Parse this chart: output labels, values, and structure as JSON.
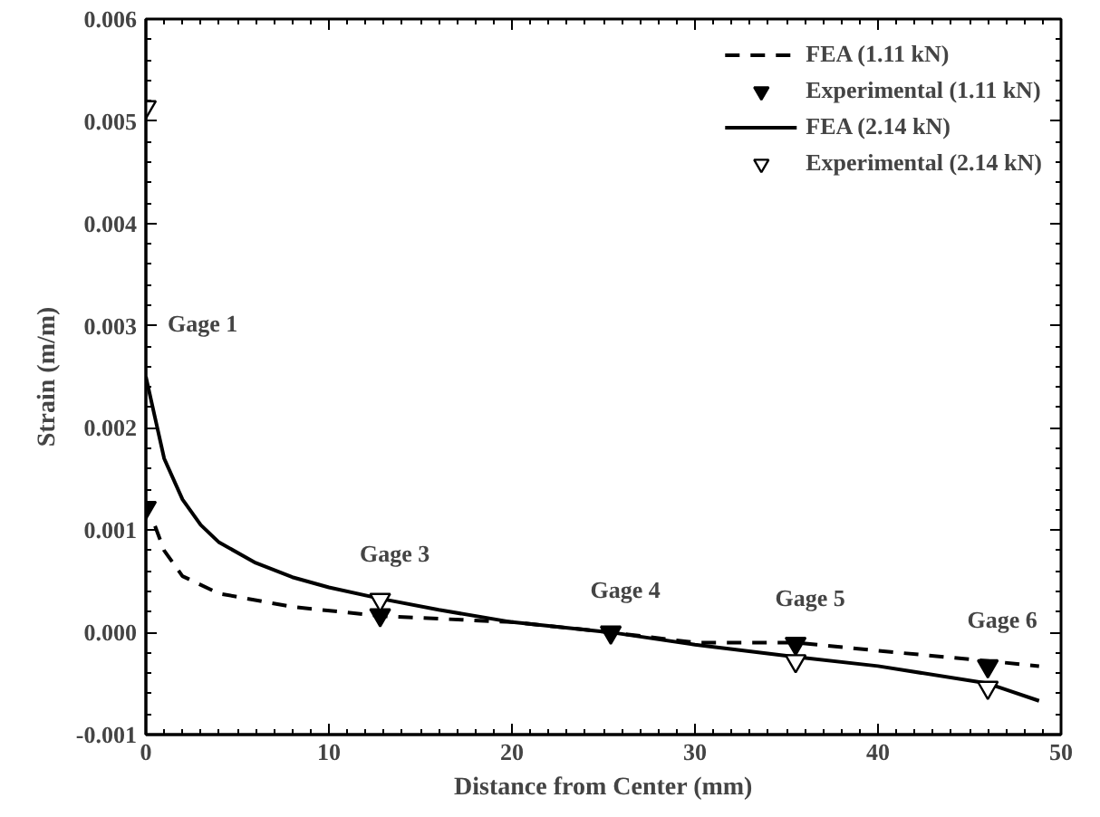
{
  "chart_data": {
    "type": "line",
    "xlabel": "Distance from Center (mm)",
    "ylabel": "Strain (m/m)",
    "xlim": [
      0,
      50
    ],
    "ylim": [
      -0.001,
      0.006
    ],
    "xticks": [
      0,
      10,
      20,
      30,
      40,
      50
    ],
    "yticks": [
      {
        "value": -0.001,
        "label": "-0.001"
      },
      {
        "value": 0,
        "label": "0.000"
      },
      {
        "value": 0.001,
        "label": "0.001"
      },
      {
        "value": 0.002,
        "label": "0.002"
      },
      {
        "value": 0.003,
        "label": "0.003"
      },
      {
        "value": 0.004,
        "label": "0.004"
      },
      {
        "value": 0.005,
        "label": "0.005"
      },
      {
        "value": 0.006,
        "label": "0.006"
      }
    ],
    "grid": false,
    "legend": "top right",
    "series": [
      {
        "name": "FEA (1.11 kN)",
        "line_style": "dashed",
        "marker": "none",
        "color": "#000000",
        "x": [
          0.5,
          1,
          2,
          4,
          8,
          12.8,
          20,
          25.4,
          30,
          35.5,
          40,
          46,
          48.8
        ],
        "values": [
          0.00104,
          0.0008,
          0.00055,
          0.00038,
          0.00025,
          0.00016,
          0.0001,
          0,
          -0.0001,
          -0.0001,
          -0.00018,
          -0.00028,
          -0.00033
        ]
      },
      {
        "name": "Experimental (1.11 kN)",
        "type": "scatter",
        "marker": "triangle",
        "color": "#000000",
        "x": [
          0,
          12.8,
          25.4,
          35.5,
          46
        ],
        "values": [
          0.00122,
          0.00017,
          0,
          -0.00011,
          -0.00033
        ]
      },
      {
        "name": "FEA (2.14 kN)",
        "line_style": "solid",
        "marker": "none",
        "color": "#000000",
        "x": [
          0,
          0.5,
          1,
          2,
          3,
          4,
          6,
          8,
          10,
          12.8,
          16,
          20,
          25.4,
          30,
          35.5,
          40,
          46,
          48.8
        ],
        "values": [
          0.0025,
          0.0021,
          0.0017,
          0.0013,
          0.00105,
          0.00088,
          0.00068,
          0.00054,
          0.00044,
          0.00033,
          0.00022,
          0.0001,
          0,
          -0.00012,
          -0.00024,
          -0.00033,
          -0.0005,
          -0.00067
        ]
      },
      {
        "name": "Experimental (2.14 kN)",
        "type": "scatter",
        "marker": "triangle",
        "color": "#ffffff",
        "x": [
          0,
          12.8,
          35.5,
          46
        ],
        "values": [
          0.00514,
          0.00032,
          -0.00028,
          -0.00054
        ]
      }
    ],
    "annotations": [
      {
        "text": "Gage 1",
        "x": 0,
        "y": 0.0025
      },
      {
        "text": "Gage 3",
        "x": 12.8,
        "y": 0.00032
      },
      {
        "text": "Gage 4",
        "x": 25.4,
        "y": -3e-05
      },
      {
        "text": "Gage 5",
        "x": 35.5,
        "y": -0.00011
      },
      {
        "text": "Gage 6",
        "x": 46,
        "y": -0.00033
      }
    ]
  }
}
